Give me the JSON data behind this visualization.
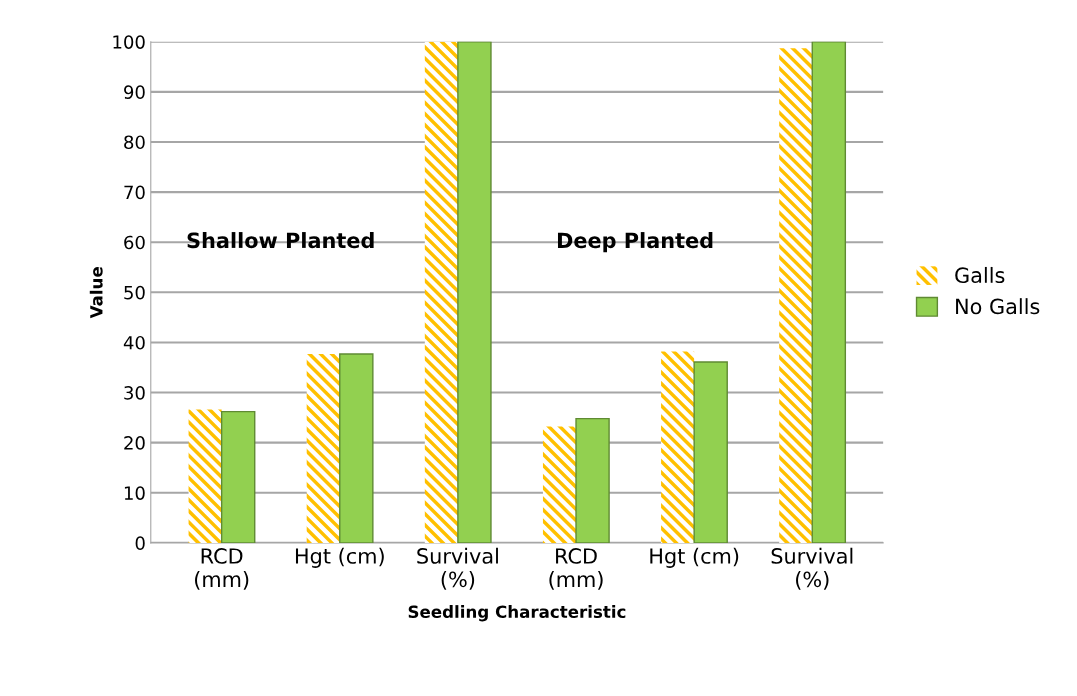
{
  "chart_data": {
    "type": "bar",
    "xlabel": "Seedling Characteristic",
    "ylabel": "Value",
    "categories": [
      "RCD\n(mm)",
      "Hgt (cm)",
      "Survival\n(%)",
      "RCD\n(mm)",
      "Hgt (cm)",
      "Survival\n(%)"
    ],
    "series": [
      {
        "name": "Galls",
        "color": "#ffc000",
        "values": [
          26.6,
          37.7,
          100,
          23.2,
          38.2,
          98.7
        ]
      },
      {
        "name": "No Galls",
        "color": "#92d050",
        "values": [
          26.2,
          37.7,
          100,
          24.8,
          36.1,
          100
        ]
      }
    ],
    "annotations": [
      "Shallow Planted",
      "Deep Planted"
    ],
    "ylim": [
      0,
      100
    ],
    "yticks": [
      0,
      10,
      20,
      30,
      40,
      50,
      60,
      70,
      80,
      90,
      100
    ],
    "grid": "y",
    "legend": "right"
  }
}
